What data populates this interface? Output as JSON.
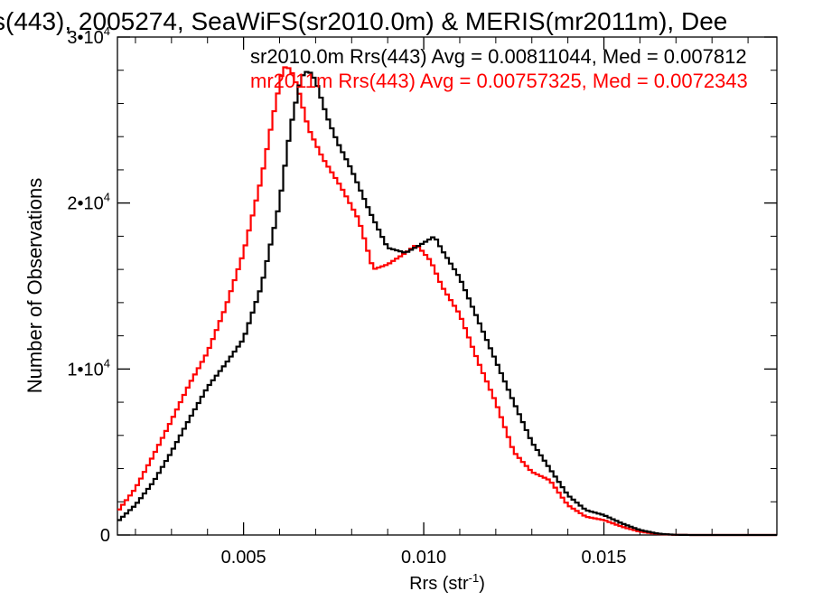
{
  "chart_data": {
    "type": "line",
    "title": "s(443), 2005274, SeaWiFS(sr2010.0m) & MERIS(mr2011m), Dee",
    "xlabel": "Rrs (str",
    "xlabel_sup": "-1",
    "xlabel_close": ")",
    "ylabel": "Number of Observations",
    "xlim": [
      0.0015,
      0.0198
    ],
    "ylim": [
      0,
      30000
    ],
    "x_ticks": [
      {
        "value": 0.005,
        "label": "0.005"
      },
      {
        "value": 0.01,
        "label": "0.010"
      },
      {
        "value": 0.015,
        "label": "0.015"
      }
    ],
    "y_ticks": [
      {
        "value": 0,
        "base": "0",
        "exp": ""
      },
      {
        "value": 10000,
        "base": "1•10",
        "exp": "4"
      },
      {
        "value": 20000,
        "base": "2•10",
        "exp": "4"
      },
      {
        "value": 30000,
        "base": "3•10",
        "exp": "4"
      }
    ],
    "legend_position": "top-right",
    "series": [
      {
        "name": "sr2010.0m Rrs(443) Avg = 0.00811044, Med = 0.007812",
        "color": "#000000",
        "points": [
          [
            0.0015,
            800
          ],
          [
            0.002,
            1800
          ],
          [
            0.0025,
            3200
          ],
          [
            0.003,
            5000
          ],
          [
            0.0035,
            7000
          ],
          [
            0.004,
            8900
          ],
          [
            0.0045,
            10300
          ],
          [
            0.005,
            11800
          ],
          [
            0.0055,
            15000
          ],
          [
            0.006,
            20000
          ],
          [
            0.0063,
            24500
          ],
          [
            0.0066,
            27600
          ],
          [
            0.0068,
            28000
          ],
          [
            0.007,
            27400
          ],
          [
            0.0073,
            25300
          ],
          [
            0.0076,
            23700
          ],
          [
            0.008,
            22000
          ],
          [
            0.0085,
            19500
          ],
          [
            0.009,
            17300
          ],
          [
            0.0095,
            17000
          ],
          [
            0.01,
            17600
          ],
          [
            0.0103,
            18000
          ],
          [
            0.0105,
            17200
          ],
          [
            0.011,
            15500
          ],
          [
            0.0115,
            13000
          ],
          [
            0.012,
            10500
          ],
          [
            0.0125,
            8000
          ],
          [
            0.013,
            5600
          ],
          [
            0.0135,
            4000
          ],
          [
            0.014,
            2400
          ],
          [
            0.0145,
            1500
          ],
          [
            0.015,
            1200
          ],
          [
            0.0155,
            700
          ],
          [
            0.016,
            300
          ],
          [
            0.0165,
            80
          ],
          [
            0.017,
            10
          ],
          [
            0.0175,
            0
          ],
          [
            0.0198,
            0
          ]
        ]
      },
      {
        "name": "mr2011m Rrs(443) Avg = 0.00757325, Med = 0.0072343",
        "color": "#ff0000",
        "points": [
          [
            0.0015,
            1400
          ],
          [
            0.002,
            2800
          ],
          [
            0.0025,
            4800
          ],
          [
            0.003,
            6900
          ],
          [
            0.0035,
            9100
          ],
          [
            0.004,
            11000
          ],
          [
            0.0045,
            13700
          ],
          [
            0.005,
            17000
          ],
          [
            0.0055,
            21500
          ],
          [
            0.0058,
            25000
          ],
          [
            0.0061,
            28200
          ],
          [
            0.0063,
            28100
          ],
          [
            0.0065,
            27000
          ],
          [
            0.0068,
            24500
          ],
          [
            0.0072,
            22700
          ],
          [
            0.0077,
            21000
          ],
          [
            0.0082,
            19000
          ],
          [
            0.0086,
            16000
          ],
          [
            0.009,
            16300
          ],
          [
            0.0095,
            17000
          ],
          [
            0.0098,
            17500
          ],
          [
            0.0102,
            16500
          ],
          [
            0.0105,
            15000
          ],
          [
            0.011,
            13300
          ],
          [
            0.0115,
            10500
          ],
          [
            0.012,
            8000
          ],
          [
            0.0125,
            5000
          ],
          [
            0.013,
            3800
          ],
          [
            0.0135,
            3300
          ],
          [
            0.014,
            1800
          ],
          [
            0.0145,
            1100
          ],
          [
            0.015,
            900
          ],
          [
            0.0155,
            500
          ],
          [
            0.016,
            200
          ],
          [
            0.0165,
            60
          ],
          [
            0.017,
            10
          ],
          [
            0.0175,
            0
          ],
          [
            0.0198,
            0
          ]
        ]
      }
    ]
  }
}
